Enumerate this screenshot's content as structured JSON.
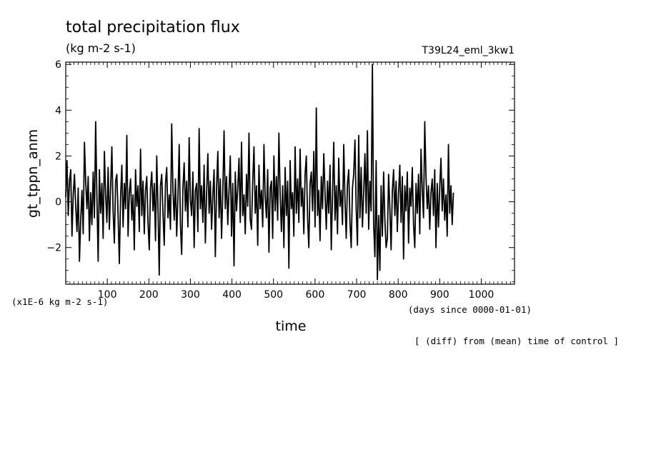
{
  "chart_data": {
    "type": "line",
    "title": "total precipitation flux",
    "subtitle": "(kg m-2 s-1)",
    "run_label": "T39L24_eml_3kw1",
    "xlabel": "time",
    "ylabel": "gt_tppn_anm",
    "x_unit_note": "(days since 0000-01-01)",
    "y_unit_note": "(x1E-6 kg m-2 s-1)",
    "footnote": "[ (diff) from (mean) time of control ]",
    "xlim": [
      0,
      1080
    ],
    "ylim": [
      -3.6,
      6.1
    ],
    "x_ticks": [
      100,
      200,
      300,
      400,
      500,
      600,
      700,
      800,
      900,
      1000
    ],
    "y_ticks": [
      -2,
      0,
      2,
      4,
      6
    ],
    "x_tick_labels": [
      "100",
      "200",
      "300",
      "400",
      "500",
      "600",
      "700",
      "800",
      "900",
      "1000"
    ],
    "y_tick_labels": [
      "−2",
      "0",
      "2",
      "4",
      "6"
    ],
    "grid": false,
    "series": [
      {
        "color": "#000000",
        "x_step": 3,
        "x_start": 0,
        "values": [
          0.2,
          1.8,
          -0.6,
          0.9,
          1.4,
          -1.5,
          0.3,
          1.2,
          -0.2,
          -1.3,
          0.6,
          -2.6,
          -0.8,
          0.5,
          -1.4,
          2.6,
          0.9,
          -0.3,
          1.1,
          -1.7,
          0.4,
          -1.0,
          1.3,
          -0.7,
          3.5,
          0.2,
          -2.6,
          1.4,
          -0.5,
          0.8,
          -1.6,
          2.2,
          0.3,
          -0.9,
          1.5,
          -1.2,
          0.6,
          2.4,
          -0.4,
          -1.8,
          0.9,
          1.2,
          -0.6,
          -2.7,
          0.2,
          1.6,
          -1.1,
          0.8,
          -0.3,
          2.9,
          -1.5,
          0.4,
          1.0,
          -0.8,
          0.3,
          -2.1,
          1.4,
          -0.2,
          0.7,
          -1.3,
          2.3,
          -0.6,
          0.9,
          -1.4,
          0.5,
          1.1,
          -0.9,
          -2.1,
          0.6,
          1.3,
          -0.4,
          0.8,
          -1.7,
          2.0,
          -0.3,
          -3.2,
          0.7,
          1.2,
          -0.5,
          -1.9,
          0.8,
          1.5,
          -0.7,
          0.3,
          -1.2,
          3.4,
          0.5,
          -0.8,
          1.0,
          -1.5,
          0.2,
          2.5,
          -1.0,
          -2.3,
          0.6,
          1.7,
          -0.4,
          0.9,
          -1.1,
          2.8,
          0.1,
          -0.6,
          1.3,
          -2.0,
          0.5,
          0.8,
          -1.3,
          3.2,
          -0.3,
          0.7,
          -0.9,
          1.6,
          -1.8,
          0.4,
          2.1,
          -0.5,
          0.9,
          -1.2,
          0.3,
          1.4,
          -2.4,
          0.6,
          2.2,
          -0.7,
          1.0,
          -1.6,
          0.4,
          3.1,
          -0.3,
          1.1,
          -1.0,
          0.5,
          2.0,
          -1.5,
          0.8,
          -2.8,
          1.3,
          -0.4,
          0.6,
          1.9,
          -0.9,
          2.6,
          -0.6,
          0.3,
          -1.4,
          1.2,
          -0.2,
          3.0,
          -0.8,
          -1.2,
          0.9,
          2.4,
          -0.5,
          0.7,
          -1.9,
          1.6,
          -0.3,
          0.5,
          -1.1,
          2.5,
          0.2,
          -0.7,
          1.4,
          -2.2,
          0.6,
          0.9,
          -1.6,
          2.0,
          -0.4,
          1.1,
          -0.8,
          3.0,
          0.3,
          -1.3,
          0.7,
          -2.0,
          1.5,
          -0.6,
          0.9,
          -2.9,
          1.8,
          -0.3,
          0.4,
          -1.5,
          2.4,
          -0.5,
          1.0,
          -0.9,
          2.3,
          -0.2,
          0.6,
          -1.4,
          1.2,
          2.0,
          -0.7,
          -2.0,
          0.8,
          1.3,
          -0.4,
          2.2,
          -1.1,
          4.1,
          -0.6,
          0.5,
          -1.7,
          1.1,
          -0.3,
          2.1,
          0.4,
          -1.2,
          0.9,
          -0.5,
          1.6,
          -2.1,
          0.3,
          2.6,
          -0.8,
          0.7,
          -1.4,
          1.9,
          -0.2,
          0.5,
          -1.0,
          2.5,
          0.1,
          -1.6,
          0.8,
          1.4,
          -0.9,
          -2.0,
          0.6,
          1.2,
          2.7,
          -0.3,
          -1.9,
          2.9,
          -0.7,
          1.5,
          -1.1,
          0.4,
          2.1,
          -0.5,
          3.1,
          -1.2,
          0.9,
          -0.4,
          6.0,
          -1.0,
          -2.4,
          1.8,
          -3.4,
          -0.6,
          -3.0,
          0.7,
          -1.5,
          1.3,
          -0.8,
          -2.0,
          -1.6,
          1.2,
          -0.3,
          -2.1,
          0.5,
          1.4,
          -0.6,
          0.9,
          -1.3,
          0.4,
          1.6,
          -0.9,
          1.1,
          -2.5,
          0.7,
          -0.4,
          1.3,
          -1.8,
          0.6,
          -0.2,
          1.5,
          -1.0,
          -2.0,
          0.8,
          -0.5,
          1.2,
          -1.4,
          2.3,
          0.5,
          -0.7,
          3.5,
          1.1,
          -0.3,
          0.7,
          -1.2,
          0.4,
          1.0,
          -0.6,
          1.4,
          -2.0,
          0.8,
          -1.1,
          0.6,
          1.9,
          -0.4,
          1.0,
          -0.8,
          0.3,
          -1.5,
          2.5,
          -0.5,
          0.7,
          -1.0,
          0.4
        ]
      }
    ]
  }
}
